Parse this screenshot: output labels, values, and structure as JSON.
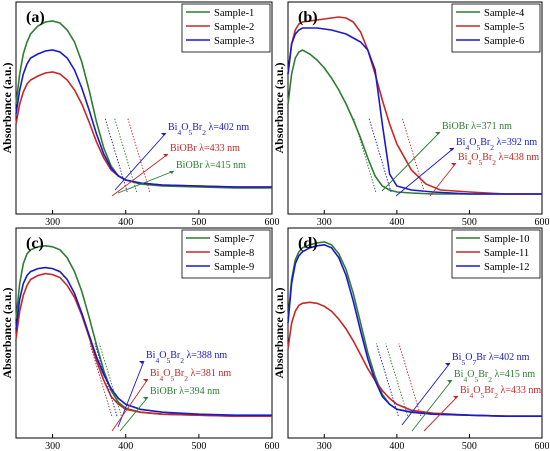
{
  "chart_data": [
    {
      "panel": "(a)",
      "type": "line",
      "xlabel": "Wavelength (nm)",
      "ylabel": "Absorbance (a.u.)",
      "xlim": [
        250,
        600
      ],
      "xticks": [
        300,
        400,
        500,
        600
      ],
      "series": [
        {
          "name": "Sample-1",
          "color": "#2e7d32",
          "x": [
            250,
            255,
            260,
            265,
            270,
            280,
            290,
            300,
            310,
            320,
            330,
            340,
            350,
            360,
            370,
            380,
            390,
            400,
            420,
            450,
            500,
            550,
            600
          ],
          "y": [
            0.55,
            0.7,
            0.8,
            0.86,
            0.9,
            0.94,
            0.96,
            0.965,
            0.955,
            0.92,
            0.86,
            0.76,
            0.62,
            0.46,
            0.33,
            0.24,
            0.19,
            0.17,
            0.15,
            0.14,
            0.135,
            0.13,
            0.13
          ]
        },
        {
          "name": "Sample-2",
          "color": "#c62828",
          "x": [
            250,
            255,
            260,
            265,
            270,
            280,
            290,
            300,
            310,
            320,
            330,
            340,
            350,
            360,
            370,
            380,
            390,
            400,
            420,
            450,
            500,
            550,
            600
          ],
          "y": [
            0.45,
            0.55,
            0.61,
            0.65,
            0.67,
            0.69,
            0.705,
            0.71,
            0.7,
            0.67,
            0.62,
            0.55,
            0.46,
            0.36,
            0.28,
            0.22,
            0.19,
            0.17,
            0.155,
            0.145,
            0.14,
            0.135,
            0.135
          ]
        },
        {
          "name": "Sample-3",
          "color": "#1a1acc",
          "x": [
            250,
            255,
            260,
            265,
            270,
            280,
            290,
            300,
            310,
            320,
            330,
            340,
            350,
            360,
            370,
            380,
            390,
            400,
            420,
            450,
            500,
            550,
            600
          ],
          "y": [
            0.5,
            0.62,
            0.7,
            0.75,
            0.78,
            0.8,
            0.815,
            0.82,
            0.81,
            0.78,
            0.72,
            0.63,
            0.52,
            0.4,
            0.3,
            0.23,
            0.19,
            0.17,
            0.155,
            0.145,
            0.14,
            0.135,
            0.135
          ]
        }
      ],
      "annotations": [
        {
          "label_main": "Bi",
          "label_parts": [
            [
              "Bi",
              ""
            ],
            [
              "4",
              "sub"
            ],
            [
              "O",
              ""
            ],
            [
              "5",
              "sub"
            ],
            [
              "Br",
              ""
            ],
            [
              "2",
              "sub"
            ],
            [
              " λ=402 nm",
              ""
            ]
          ],
          "color": "#1a1acc",
          "edge_x": 402,
          "line_color": "#1a1acc"
        },
        {
          "label_parts": [
            [
              "BiOBr λ=433 nm",
              ""
            ]
          ],
          "color": "#c62828",
          "edge_x": 433,
          "line_color": "#c62828"
        },
        {
          "label_parts": [
            [
              "BiOBr λ=415 nm",
              ""
            ]
          ],
          "color": "#2e7d32",
          "edge_x": 415,
          "line_color": "#2e7d32"
        }
      ]
    },
    {
      "panel": "(b)",
      "type": "line",
      "xlabel": "Wavelength (nm)",
      "ylabel": "Absorbance (a.u.)",
      "xlim": [
        250,
        600
      ],
      "xticks": [
        300,
        400,
        500,
        600
      ],
      "series": [
        {
          "name": "Sample-4",
          "color": "#2e7d32",
          "x": [
            250,
            255,
            260,
            265,
            270,
            280,
            290,
            300,
            310,
            320,
            330,
            340,
            350,
            360,
            370,
            380,
            390,
            400,
            420,
            450,
            500,
            550,
            600
          ],
          "y": [
            0.55,
            0.7,
            0.78,
            0.81,
            0.82,
            0.8,
            0.77,
            0.73,
            0.68,
            0.62,
            0.55,
            0.47,
            0.38,
            0.28,
            0.19,
            0.14,
            0.12,
            0.11,
            0.105,
            0.1,
            0.1,
            0.1,
            0.1
          ]
        },
        {
          "name": "Sample-5",
          "color": "#c62828",
          "x": [
            250,
            255,
            260,
            265,
            270,
            280,
            290,
            300,
            310,
            320,
            330,
            340,
            350,
            360,
            370,
            380,
            390,
            400,
            420,
            440,
            460,
            500,
            550,
            600
          ],
          "y": [
            0.7,
            0.85,
            0.92,
            0.95,
            0.96,
            0.965,
            0.97,
            0.975,
            0.98,
            0.985,
            0.98,
            0.96,
            0.91,
            0.82,
            0.7,
            0.57,
            0.45,
            0.35,
            0.22,
            0.15,
            0.12,
            0.11,
            0.1,
            0.1
          ]
        },
        {
          "name": "Sample-6",
          "color": "#1a1acc",
          "x": [
            250,
            255,
            260,
            265,
            270,
            280,
            290,
            300,
            310,
            320,
            330,
            340,
            350,
            360,
            370,
            380,
            390,
            400,
            420,
            450,
            500,
            550,
            600
          ],
          "y": [
            0.7,
            0.85,
            0.9,
            0.92,
            0.93,
            0.93,
            0.93,
            0.925,
            0.92,
            0.91,
            0.9,
            0.88,
            0.86,
            0.82,
            0.72,
            0.45,
            0.2,
            0.14,
            0.12,
            0.11,
            0.1,
            0.1,
            0.1
          ]
        }
      ],
      "annotations": [
        {
          "label_parts": [
            [
              "BiOBr λ=371 nm",
              ""
            ]
          ],
          "color": "#2e7d32",
          "edge_x": 371,
          "line_color": "#2e7d32"
        },
        {
          "label_parts": [
            [
              "Bi",
              ""
            ],
            [
              "4",
              "sub"
            ],
            [
              "O",
              ""
            ],
            [
              "5",
              "sub"
            ],
            [
              "Br",
              ""
            ],
            [
              "2",
              "sub"
            ],
            [
              " λ=392 nm",
              ""
            ]
          ],
          "color": "#1a1acc",
          "edge_x": 392,
          "line_color": "#1a1acc"
        },
        {
          "label_parts": [
            [
              "Bi",
              ""
            ],
            [
              "4",
              "sub"
            ],
            [
              "O",
              ""
            ],
            [
              "5",
              "sub"
            ],
            [
              "Br",
              ""
            ],
            [
              "2",
              "sub"
            ],
            [
              " λ=438 nm",
              ""
            ]
          ],
          "color": "#c62828",
          "edge_x": 438,
          "line_color": "#c62828"
        }
      ]
    },
    {
      "panel": "(c)",
      "type": "line",
      "xlabel": "Wavelength (nm)",
      "ylabel": "Absorbance (a.u.)",
      "xlim": [
        250,
        600
      ],
      "xticks": [
        300,
        400,
        500,
        600
      ],
      "series": [
        {
          "name": "Sample-7",
          "color": "#2e7d32",
          "x": [
            250,
            255,
            260,
            265,
            270,
            280,
            290,
            300,
            310,
            320,
            330,
            340,
            350,
            360,
            370,
            380,
            390,
            400,
            420,
            450,
            500,
            550,
            600
          ],
          "y": [
            0.6,
            0.78,
            0.88,
            0.93,
            0.95,
            0.965,
            0.97,
            0.965,
            0.95,
            0.91,
            0.84,
            0.74,
            0.61,
            0.47,
            0.34,
            0.24,
            0.18,
            0.15,
            0.13,
            0.12,
            0.115,
            0.11,
            0.11
          ]
        },
        {
          "name": "Sample-8",
          "color": "#c62828",
          "x": [
            250,
            255,
            260,
            265,
            270,
            280,
            290,
            300,
            310,
            320,
            330,
            340,
            350,
            360,
            370,
            380,
            390,
            400,
            420,
            450,
            500,
            550,
            600
          ],
          "y": [
            0.5,
            0.64,
            0.72,
            0.77,
            0.8,
            0.82,
            0.83,
            0.825,
            0.81,
            0.77,
            0.71,
            0.62,
            0.51,
            0.39,
            0.29,
            0.21,
            0.17,
            0.145,
            0.13,
            0.12,
            0.115,
            0.11,
            0.11
          ]
        },
        {
          "name": "Sample-9",
          "color": "#1a1acc",
          "x": [
            250,
            255,
            260,
            265,
            270,
            280,
            290,
            300,
            310,
            320,
            330,
            340,
            350,
            360,
            370,
            380,
            390,
            400,
            420,
            450,
            500,
            550,
            600
          ],
          "y": [
            0.55,
            0.7,
            0.78,
            0.82,
            0.84,
            0.855,
            0.86,
            0.855,
            0.84,
            0.8,
            0.73,
            0.63,
            0.52,
            0.41,
            0.32,
            0.25,
            0.2,
            0.17,
            0.145,
            0.13,
            0.12,
            0.115,
            0.115
          ]
        }
      ],
      "annotations": [
        {
          "label_parts": [
            [
              "Bi",
              ""
            ],
            [
              "4",
              "sub"
            ],
            [
              "O",
              ""
            ],
            [
              "5",
              "sub"
            ],
            [
              "Br",
              ""
            ],
            [
              "2",
              "sub"
            ],
            [
              " λ=388 nm",
              ""
            ]
          ],
          "color": "#1a1acc",
          "edge_x": 388,
          "line_color": "#1a1acc"
        },
        {
          "label_parts": [
            [
              "Bi",
              ""
            ],
            [
              "4",
              "sub"
            ],
            [
              "O",
              ""
            ],
            [
              "5",
              "sub"
            ],
            [
              "Br",
              ""
            ],
            [
              "2",
              "sub"
            ],
            [
              " λ=381 nm",
              ""
            ]
          ],
          "color": "#c62828",
          "edge_x": 381,
          "line_color": "#c62828"
        },
        {
          "label_parts": [
            [
              "BiOBr λ=394 nm",
              ""
            ]
          ],
          "color": "#2e7d32",
          "edge_x": 394,
          "line_color": "#2e7d32"
        }
      ]
    },
    {
      "panel": "(d)",
      "type": "line",
      "xlabel": "Wavelength (nm)",
      "ylabel": "Absorbance (a.u.)",
      "xlim": [
        250,
        600
      ],
      "xticks": [
        300,
        400,
        500,
        600
      ],
      "series": [
        {
          "name": "Sample-10",
          "color": "#2e7d32",
          "x": [
            250,
            255,
            260,
            265,
            270,
            280,
            290,
            300,
            310,
            320,
            330,
            340,
            350,
            360,
            370,
            380,
            390,
            400,
            420,
            450,
            500,
            550,
            600
          ],
          "y": [
            0.6,
            0.8,
            0.9,
            0.94,
            0.96,
            0.975,
            0.985,
            0.99,
            0.975,
            0.93,
            0.85,
            0.73,
            0.58,
            0.43,
            0.31,
            0.22,
            0.17,
            0.145,
            0.13,
            0.12,
            0.115,
            0.11,
            0.11
          ]
        },
        {
          "name": "Sample-11",
          "color": "#c62828",
          "x": [
            250,
            255,
            260,
            265,
            270,
            280,
            290,
            300,
            310,
            320,
            330,
            340,
            350,
            360,
            370,
            380,
            390,
            400,
            420,
            450,
            500,
            550,
            600
          ],
          "y": [
            0.45,
            0.58,
            0.64,
            0.67,
            0.68,
            0.685,
            0.68,
            0.665,
            0.64,
            0.6,
            0.55,
            0.49,
            0.42,
            0.35,
            0.29,
            0.24,
            0.2,
            0.17,
            0.14,
            0.125,
            0.115,
            0.11,
            0.11
          ]
        },
        {
          "name": "Sample-12",
          "color": "#1a1acc",
          "x": [
            250,
            255,
            260,
            265,
            270,
            280,
            290,
            300,
            310,
            320,
            330,
            340,
            350,
            360,
            370,
            380,
            390,
            400,
            420,
            450,
            500,
            550,
            600
          ],
          "y": [
            0.58,
            0.78,
            0.88,
            0.92,
            0.94,
            0.96,
            0.97,
            0.975,
            0.96,
            0.91,
            0.82,
            0.69,
            0.54,
            0.4,
            0.29,
            0.21,
            0.17,
            0.145,
            0.13,
            0.12,
            0.115,
            0.11,
            0.11
          ]
        }
      ],
      "annotations": [
        {
          "label_parts": [
            [
              "Bi",
              ""
            ],
            [
              "5",
              "sub"
            ],
            [
              "O",
              ""
            ],
            [
              "7",
              "sub"
            ],
            [
              "Br λ=402 nm",
              ""
            ]
          ],
          "color": "#1a1acc",
          "edge_x": 402,
          "line_color": "#1a1acc"
        },
        {
          "label_parts": [
            [
              "Bi",
              ""
            ],
            [
              "4",
              "sub"
            ],
            [
              "O",
              ""
            ],
            [
              "5",
              "sub"
            ],
            [
              "Br",
              ""
            ],
            [
              "2",
              "sub"
            ],
            [
              " λ=415 nm",
              ""
            ]
          ],
          "color": "#2e7d32",
          "edge_x": 415,
          "line_color": "#2e7d32"
        },
        {
          "label_parts": [
            [
              "Bi",
              ""
            ],
            [
              "4",
              "sub"
            ],
            [
              "O",
              ""
            ],
            [
              "5",
              "sub"
            ],
            [
              "Br",
              ""
            ],
            [
              "2",
              "sub"
            ],
            [
              " λ=433 nm",
              ""
            ]
          ],
          "color": "#c62828",
          "edge_x": 433,
          "line_color": "#c62828"
        }
      ]
    }
  ]
}
